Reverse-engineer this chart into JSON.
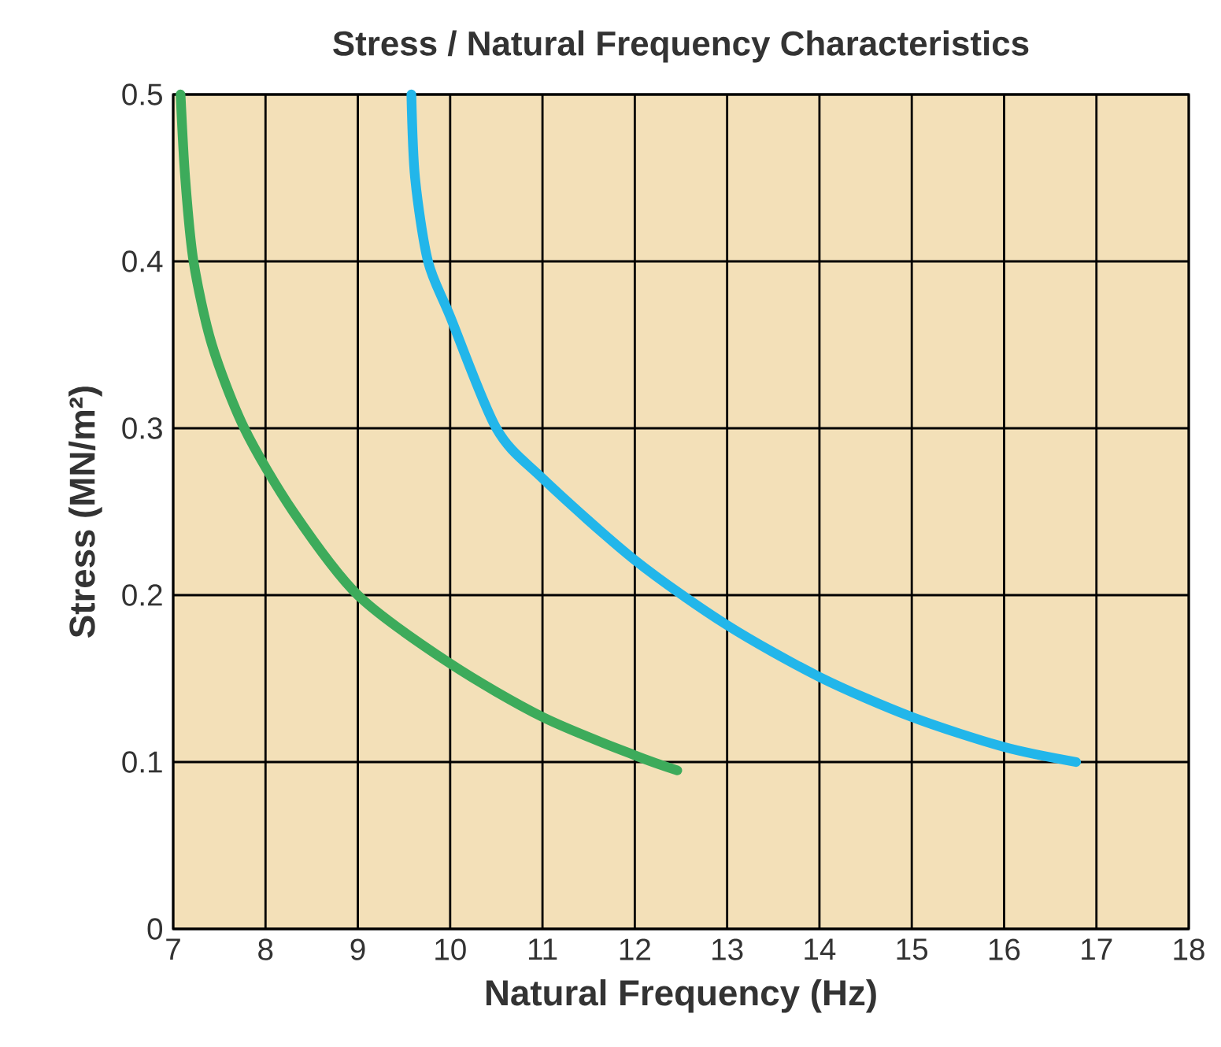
{
  "chart_data": {
    "type": "line",
    "title": "Stress / Natural Frequency Characteristics",
    "xlabel": "Natural Frequency (Hz)",
    "ylabel": "Stress (MN/m²)",
    "xlim": [
      7,
      18
    ],
    "ylim": [
      0,
      0.5
    ],
    "xticks": [
      7,
      8,
      9,
      10,
      11,
      12,
      13,
      14,
      15,
      16,
      17,
      18
    ],
    "yticks": [
      0,
      0.1,
      0.2,
      0.3,
      0.4,
      0.5
    ],
    "grid": true,
    "series": [
      {
        "color": "#3dab5b",
        "x": [
          7.08,
          7.13,
          7.22,
          7.42,
          7.77,
          8.3,
          9.0,
          10,
          11,
          12,
          12.46
        ],
        "values": [
          0.5,
          0.45,
          0.4,
          0.35,
          0.3,
          0.25,
          0.2,
          0.159,
          0.127,
          0.104,
          0.095
        ]
      },
      {
        "color": "#22b6ea",
        "x": [
          9.58,
          9.62,
          9.76,
          10,
          10.5,
          11,
          12,
          13,
          14,
          15,
          16,
          16.78
        ],
        "values": [
          0.5,
          0.45,
          0.4,
          0.367,
          0.3,
          0.27,
          0.221,
          0.182,
          0.151,
          0.127,
          0.109,
          0.1
        ]
      }
    ]
  }
}
